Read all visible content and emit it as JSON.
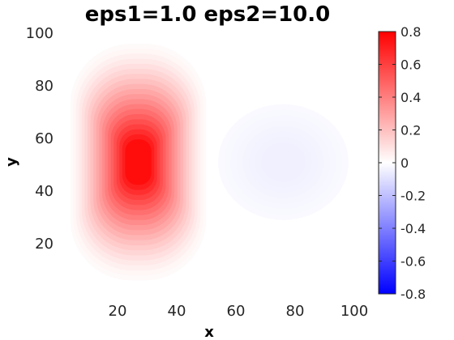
{
  "chart_data": {
    "type": "heatmap",
    "title": "eps1=1.0 eps2=10.0",
    "xlabel": "x",
    "ylabel": "y",
    "xlim": [
      0,
      100
    ],
    "ylim": [
      0,
      100
    ],
    "xticks": [
      20,
      40,
      60,
      80,
      100
    ],
    "yticks": [
      20,
      40,
      60,
      80,
      100
    ],
    "grid": false,
    "colormap": "blue-white-red",
    "colors": {
      "negative": "#0000ff",
      "zero": "#ffffff",
      "positive": "#ff0000"
    },
    "clim": [
      -0.8,
      0.8
    ],
    "colorbar_ticks": [
      0.8,
      0.6,
      0.4,
      0.2,
      0,
      -0.2,
      -0.4,
      -0.6,
      -0.8
    ],
    "colorbar_position": "right",
    "features": [
      {
        "shape": "rounded-box",
        "center": [
          27,
          51
        ],
        "half_width": 23,
        "half_height": 45,
        "peak_value": 0.8
      },
      {
        "shape": "disc",
        "center": [
          76,
          51
        ],
        "radius": 22,
        "peak_value": -0.05
      }
    ]
  }
}
